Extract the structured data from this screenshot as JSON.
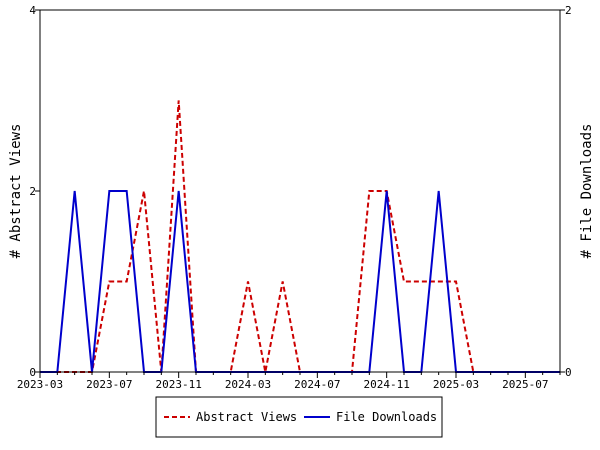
{
  "chart_data": {
    "type": "line",
    "x": [
      "2023-03",
      "2023-04",
      "2023-05",
      "2023-06",
      "2023-07",
      "2023-08",
      "2023-09",
      "2023-10",
      "2023-11",
      "2023-12",
      "2024-01",
      "2024-02",
      "2024-03",
      "2024-04",
      "2024-05",
      "2024-06",
      "2024-07",
      "2024-08",
      "2024-09",
      "2024-10",
      "2024-11",
      "2024-12",
      "2025-01",
      "2025-02",
      "2025-03",
      "2025-04",
      "2025-05",
      "2025-06",
      "2025-07",
      "2025-08",
      "2025-09"
    ],
    "x_ticks": [
      "2023-03",
      "2023-07",
      "2023-11",
      "2024-03",
      "2024-07",
      "2024-11",
      "2025-03",
      "2025-07"
    ],
    "y_left": {
      "label": "# Abstract Views",
      "ylim": [
        0,
        4
      ],
      "ticks": [
        0,
        2,
        4
      ]
    },
    "y_right": {
      "label": "# File Downloads",
      "ylim": [
        0,
        2
      ],
      "ticks": [
        0,
        2
      ]
    },
    "series": [
      {
        "name": "Abstract Views",
        "axis": "left",
        "color": "#cc0000",
        "dash": true,
        "values": [
          0,
          0,
          0,
          0,
          1,
          1,
          2,
          0,
          3,
          0,
          0,
          0,
          1,
          0,
          1,
          0,
          0,
          0,
          0,
          2,
          2,
          1,
          1,
          1,
          1,
          0,
          0,
          0,
          0,
          0,
          0
        ]
      },
      {
        "name": "File Downloads",
        "axis": "right",
        "color": "#0000cc",
        "dash": false,
        "values": [
          0,
          0,
          1,
          0,
          1,
          1,
          0,
          0,
          1,
          0,
          0,
          0,
          0,
          0,
          0,
          0,
          0,
          0,
          0,
          0,
          1,
          0,
          0,
          1,
          0,
          0,
          0,
          0,
          0,
          0,
          0
        ]
      }
    ],
    "legend": {
      "placement": "bottom",
      "entries": [
        "Abstract Views",
        "File Downloads"
      ]
    }
  }
}
